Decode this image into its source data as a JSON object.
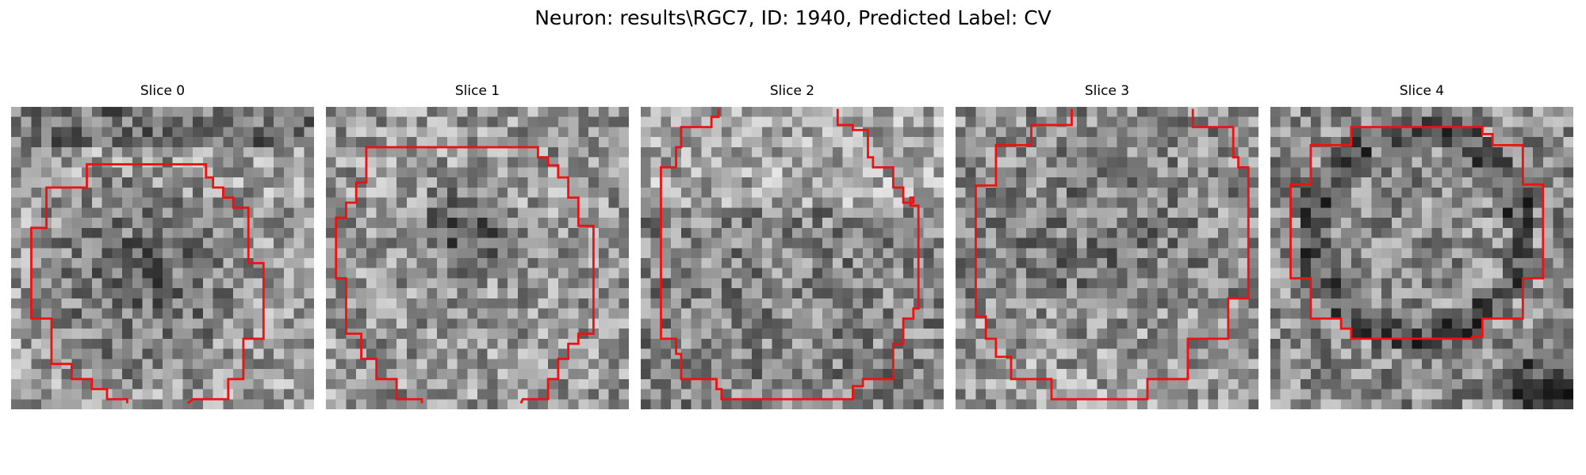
{
  "figure": {
    "title": "Neuron: results\\RGC7, ID: 1940, Predicted Label: CV"
  },
  "panels": [
    {
      "title": "Slice 0"
    },
    {
      "title": "Slice 1"
    },
    {
      "title": "Slice 2"
    },
    {
      "title": "Slice 3"
    },
    {
      "title": "Slice 4"
    }
  ],
  "colors": {
    "contour": "#ee1111",
    "colormap": "grayscale"
  }
}
